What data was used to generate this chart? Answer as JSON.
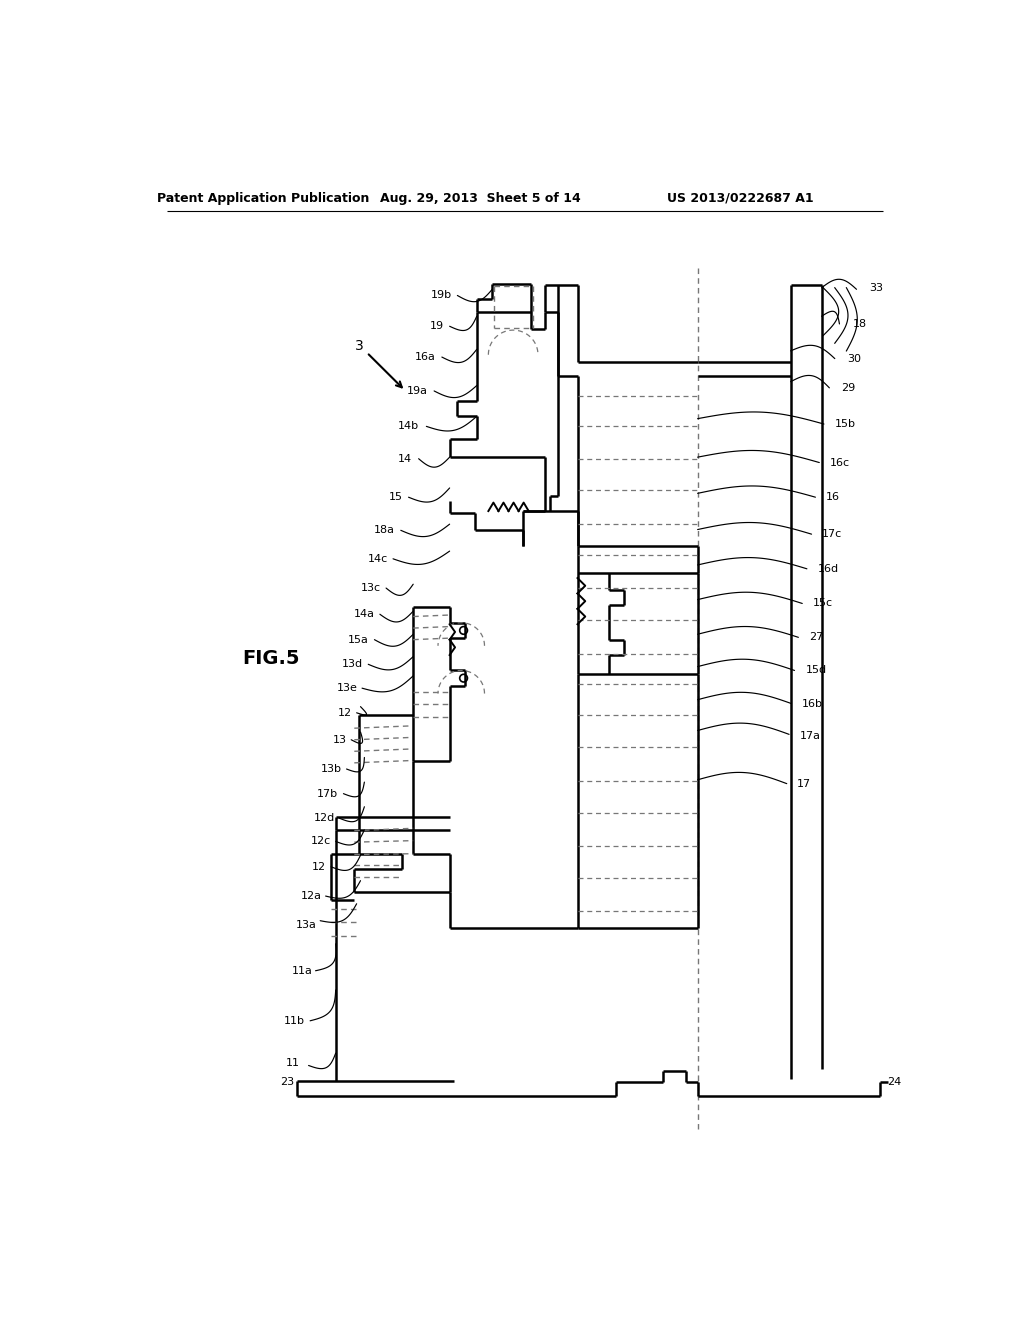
{
  "header_left": "Patent Application Publication",
  "header_mid": "Aug. 29, 2013  Sheet 5 of 14",
  "header_right": "US 2013/0222687 A1",
  "fig_label": "FIG.5",
  "arrow_label": "3",
  "bg": "#ffffff",
  "lc": "#000000",
  "dc": "#777777",
  "lw_main": 1.8,
  "lw_thin": 1.0,
  "fontsize_header": 9,
  "fontsize_label": 8,
  "fontsize_fig": 14
}
